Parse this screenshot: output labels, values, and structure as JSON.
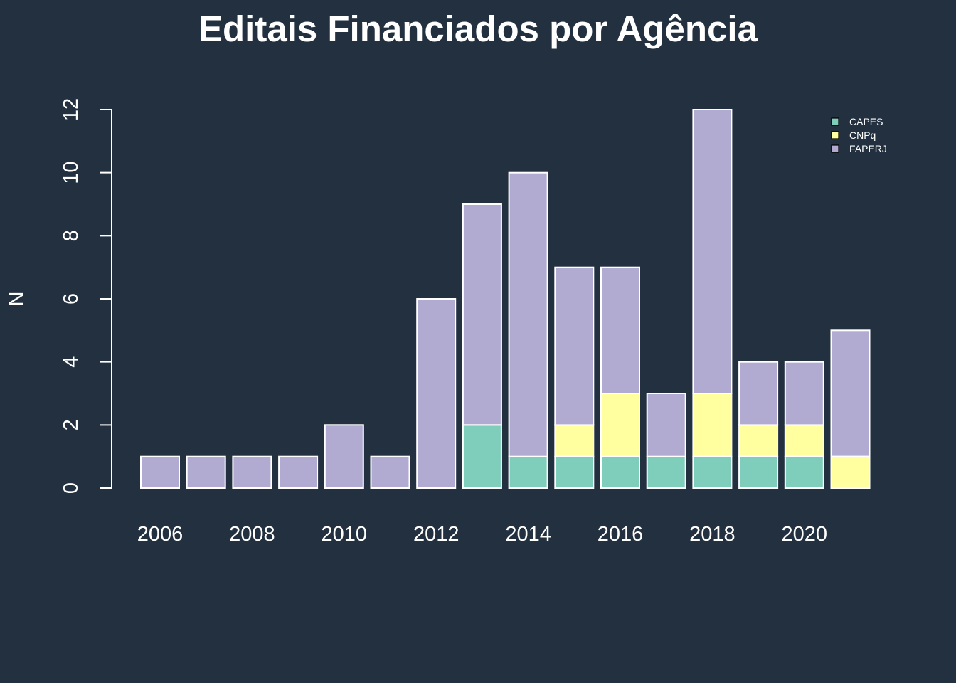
{
  "chart_data": {
    "type": "bar",
    "stacked": true,
    "title": "Editais Financiados por Agência",
    "xlabel": "",
    "ylabel": "N",
    "ylim": [
      0,
      12
    ],
    "yticks": [
      0,
      2,
      4,
      6,
      8,
      10,
      12
    ],
    "categories": [
      "2006",
      "2007",
      "2008",
      "2009",
      "2010",
      "2011",
      "2012",
      "2013",
      "2014",
      "2015",
      "2016",
      "2017",
      "2018",
      "2019",
      "2020",
      "2021"
    ],
    "xtick_labels": [
      "2006",
      "",
      "2008",
      "",
      "2010",
      "",
      "2012",
      "",
      "2014",
      "",
      "2016",
      "",
      "2018",
      "",
      "2020",
      ""
    ],
    "series": [
      {
        "name": "CAPES",
        "color": "#7fcdbb",
        "values": [
          0,
          0,
          0,
          0,
          0,
          0,
          0,
          2,
          1,
          1,
          1,
          1,
          1,
          1,
          1,
          0
        ]
      },
      {
        "name": "CNPq",
        "color": "#ffffa0",
        "values": [
          0,
          0,
          0,
          0,
          0,
          0,
          0,
          0,
          0,
          1,
          2,
          0,
          2,
          1,
          1,
          1
        ]
      },
      {
        "name": "FAPERJ",
        "color": "#b1abd1",
        "values": [
          1,
          1,
          1,
          1,
          2,
          1,
          6,
          7,
          9,
          5,
          4,
          2,
          9,
          2,
          2,
          4
        ]
      }
    ],
    "legend_position": "top-right",
    "grid": false,
    "background": "#223040",
    "bar_border_color": "#ffffff"
  }
}
